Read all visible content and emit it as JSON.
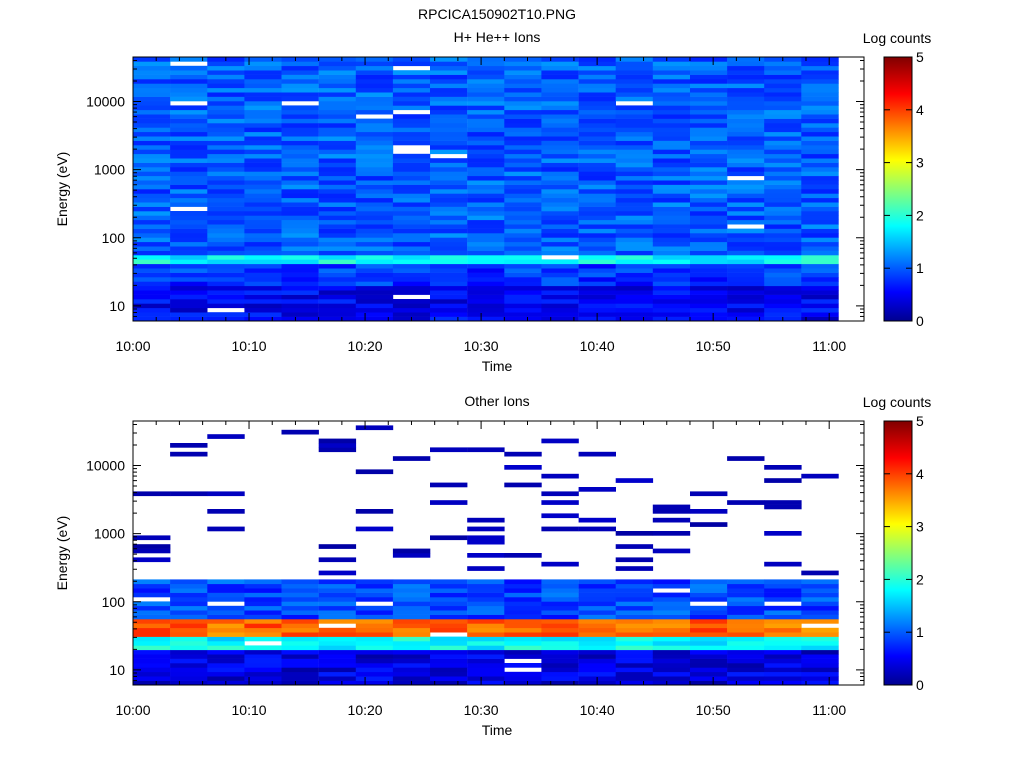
{
  "figure_title": "RPCICA150902T10.PNG",
  "colors": {
    "colormap": [
      "#00008f",
      "#0000ff",
      "#00ffff",
      "#ffff00",
      "#ff0000",
      "#800000"
    ],
    "background": "#ffffff",
    "axes": "#000000"
  },
  "chart_data": [
    {
      "type": "heatmap",
      "title": "H+ He++ Ions",
      "xlabel": "Time",
      "ylabel": "Energy (eV)",
      "x_tick_labels": [
        "10:00",
        "10:10",
        "10:20",
        "10:30",
        "10:40",
        "10:50",
        "11:00"
      ],
      "x_ticks_min": [
        0,
        10,
        20,
        30,
        40,
        50,
        60
      ],
      "xlim_min": [
        0,
        63
      ],
      "y_tick_labels": [
        "10",
        "100",
        "1000",
        "10000"
      ],
      "y_ticks": [
        10,
        100,
        1000,
        10000
      ],
      "ylim": [
        6,
        45000
      ],
      "y_scale": "log",
      "colorbar": {
        "label": "Log counts",
        "range": [
          0,
          5
        ],
        "ticks": [
          "0",
          "1",
          "2",
          "3",
          "4",
          "5"
        ]
      },
      "time_bins_min": [
        0,
        3.2,
        6.4,
        9.6,
        12.8,
        16,
        19.2,
        22.4,
        25.6,
        28.8,
        32,
        35.2,
        38.4,
        41.6,
        44.8,
        48,
        51.2,
        54.4,
        57.6
      ],
      "log_counts_summary": [
        {
          "energy_range_eV": [
            6,
            20
          ],
          "value": 0.5
        },
        {
          "energy_range_eV": [
            20,
            40
          ],
          "value": 0.8
        },
        {
          "energy_range_eV": [
            40,
            60
          ],
          "value": 1.8
        },
        {
          "energy_range_eV": [
            60,
            45000
          ],
          "value": 1.0
        }
      ],
      "empty_after_min": 57.6
    },
    {
      "type": "heatmap",
      "title": "Other Ions",
      "xlabel": "Time",
      "ylabel": "Energy (eV)",
      "x_tick_labels": [
        "10:00",
        "10:10",
        "10:20",
        "10:30",
        "10:40",
        "10:50",
        "11:00"
      ],
      "x_ticks_min": [
        0,
        10,
        20,
        30,
        40,
        50,
        60
      ],
      "xlim_min": [
        0,
        63
      ],
      "y_tick_labels": [
        "10",
        "100",
        "1000",
        "10000"
      ],
      "y_ticks": [
        10,
        100,
        1000,
        10000
      ],
      "ylim": [
        6,
        45000
      ],
      "y_scale": "log",
      "colorbar": {
        "label": "Log counts",
        "range": [
          0,
          5
        ],
        "ticks": [
          "0",
          "1",
          "2",
          "3",
          "4",
          "5"
        ]
      },
      "time_bins_min": [
        0,
        3.2,
        6.4,
        9.6,
        12.8,
        16,
        19.2,
        22.4,
        25.6,
        28.8,
        32,
        35.2,
        38.4,
        41.6,
        44.8,
        48,
        51.2,
        54.4,
        57.6
      ],
      "log_counts_summary": [
        {
          "energy_range_eV": [
            6,
            20
          ],
          "value": 0.4
        },
        {
          "energy_range_eV": [
            20,
            30
          ],
          "value": 1.8
        },
        {
          "energy_range_eV": [
            30,
            55
          ],
          "value": 3.8
        },
        {
          "energy_range_eV": [
            55,
            220
          ],
          "value": 0.9
        },
        {
          "energy_range_eV": [
            220,
            45000
          ],
          "value": 0.2,
          "note": "sparse"
        }
      ],
      "empty_after_min": 57.6
    }
  ]
}
